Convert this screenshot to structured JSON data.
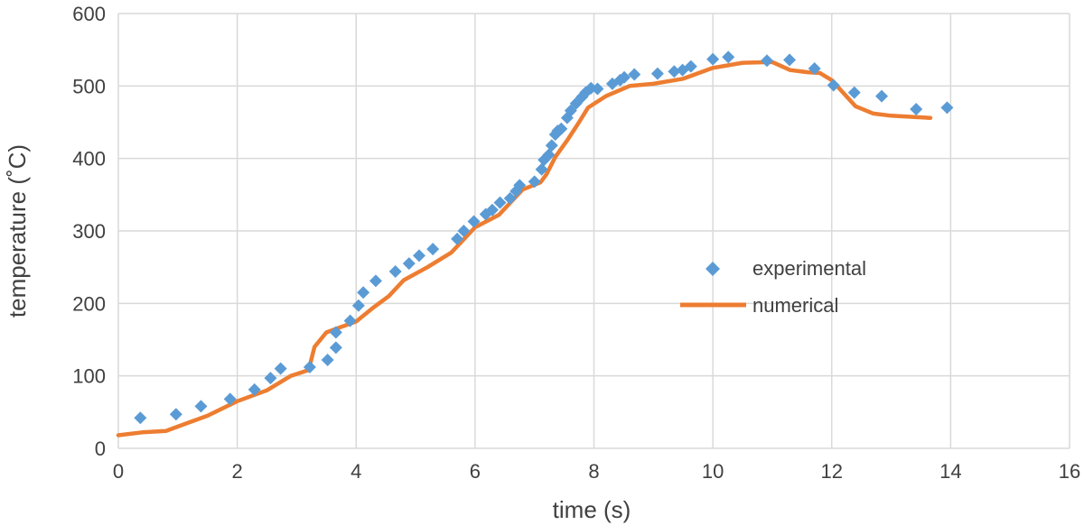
{
  "chart_data": {
    "type": "scatter",
    "xlabel": "time (s)",
    "ylabel": "temperature (˚C)",
    "xlim": [
      0,
      16
    ],
    "ylim": [
      0,
      600
    ],
    "x_ticks": [
      0,
      2,
      4,
      6,
      8,
      10,
      12,
      14,
      16
    ],
    "y_ticks": [
      0,
      100,
      200,
      300,
      400,
      500,
      600
    ],
    "x_tick_labels": [
      "0",
      "2",
      "4",
      "6",
      "8",
      "10",
      "12",
      "14",
      "16"
    ],
    "y_tick_labels": [
      "0",
      "100",
      "200",
      "300",
      "400",
      "500",
      "600"
    ],
    "grid": true,
    "legend_position": "center-right",
    "series": [
      {
        "name": "experimental",
        "style": "markers",
        "marker": "diamond",
        "color": "#5b9bd5",
        "points": [
          [
            0.37,
            42
          ],
          [
            0.97,
            47
          ],
          [
            1.39,
            58
          ],
          [
            1.88,
            68
          ],
          [
            2.29,
            81
          ],
          [
            2.56,
            97
          ],
          [
            2.73,
            110
          ],
          [
            3.22,
            112
          ],
          [
            3.52,
            122
          ],
          [
            3.66,
            139
          ],
          [
            3.66,
            160
          ],
          [
            3.9,
            176
          ],
          [
            4.04,
            197
          ],
          [
            4.12,
            215
          ],
          [
            4.33,
            231
          ],
          [
            4.66,
            244
          ],
          [
            4.89,
            255
          ],
          [
            5.06,
            266
          ],
          [
            5.29,
            275
          ],
          [
            5.7,
            289
          ],
          [
            5.81,
            300
          ],
          [
            5.98,
            313
          ],
          [
            6.18,
            323
          ],
          [
            6.29,
            329
          ],
          [
            6.42,
            339
          ],
          [
            6.59,
            345
          ],
          [
            6.69,
            355
          ],
          [
            6.75,
            363
          ],
          [
            7.0,
            368
          ],
          [
            7.12,
            385
          ],
          [
            7.16,
            398
          ],
          [
            7.24,
            405
          ],
          [
            7.29,
            418
          ],
          [
            7.35,
            433
          ],
          [
            7.39,
            438
          ],
          [
            7.45,
            441
          ],
          [
            7.55,
            456
          ],
          [
            7.61,
            466
          ],
          [
            7.7,
            476
          ],
          [
            7.8,
            485
          ],
          [
            7.86,
            491
          ],
          [
            7.95,
            497
          ],
          [
            8.06,
            496
          ],
          [
            8.31,
            503
          ],
          [
            8.44,
            508
          ],
          [
            8.51,
            512
          ],
          [
            8.68,
            516
          ],
          [
            9.07,
            517
          ],
          [
            9.35,
            520
          ],
          [
            9.49,
            522
          ],
          [
            9.63,
            527
          ],
          [
            10.0,
            537
          ],
          [
            10.26,
            540
          ],
          [
            10.91,
            535
          ],
          [
            11.29,
            536
          ],
          [
            11.71,
            524
          ],
          [
            12.03,
            501
          ],
          [
            12.38,
            491
          ],
          [
            12.84,
            486
          ],
          [
            13.42,
            468
          ],
          [
            13.94,
            470
          ]
        ]
      },
      {
        "name": "numerical",
        "style": "line",
        "color": "#ed7d31",
        "points": [
          [
            0.0,
            18
          ],
          [
            0.4,
            22
          ],
          [
            0.8,
            24
          ],
          [
            1.0,
            30
          ],
          [
            1.5,
            45
          ],
          [
            2.0,
            65
          ],
          [
            2.5,
            80
          ],
          [
            2.9,
            100
          ],
          [
            3.2,
            108
          ],
          [
            3.3,
            140
          ],
          [
            3.5,
            160
          ],
          [
            3.7,
            166
          ],
          [
            4.0,
            175
          ],
          [
            4.3,
            195
          ],
          [
            4.55,
            210
          ],
          [
            4.8,
            232
          ],
          [
            5.2,
            250
          ],
          [
            5.6,
            270
          ],
          [
            6.0,
            305
          ],
          [
            6.4,
            322
          ],
          [
            6.8,
            357
          ],
          [
            7.1,
            367
          ],
          [
            7.2,
            378
          ],
          [
            7.35,
            402
          ],
          [
            7.55,
            425
          ],
          [
            7.75,
            450
          ],
          [
            7.9,
            470
          ],
          [
            8.2,
            486
          ],
          [
            8.6,
            500
          ],
          [
            9.0,
            503
          ],
          [
            9.5,
            510
          ],
          [
            10.0,
            525
          ],
          [
            10.5,
            532
          ],
          [
            11.0,
            533
          ],
          [
            11.3,
            522
          ],
          [
            11.6,
            519
          ],
          [
            11.8,
            518
          ],
          [
            12.0,
            508
          ],
          [
            12.2,
            490
          ],
          [
            12.4,
            472
          ],
          [
            12.7,
            462
          ],
          [
            13.0,
            459
          ],
          [
            13.66,
            456
          ]
        ]
      }
    ]
  }
}
